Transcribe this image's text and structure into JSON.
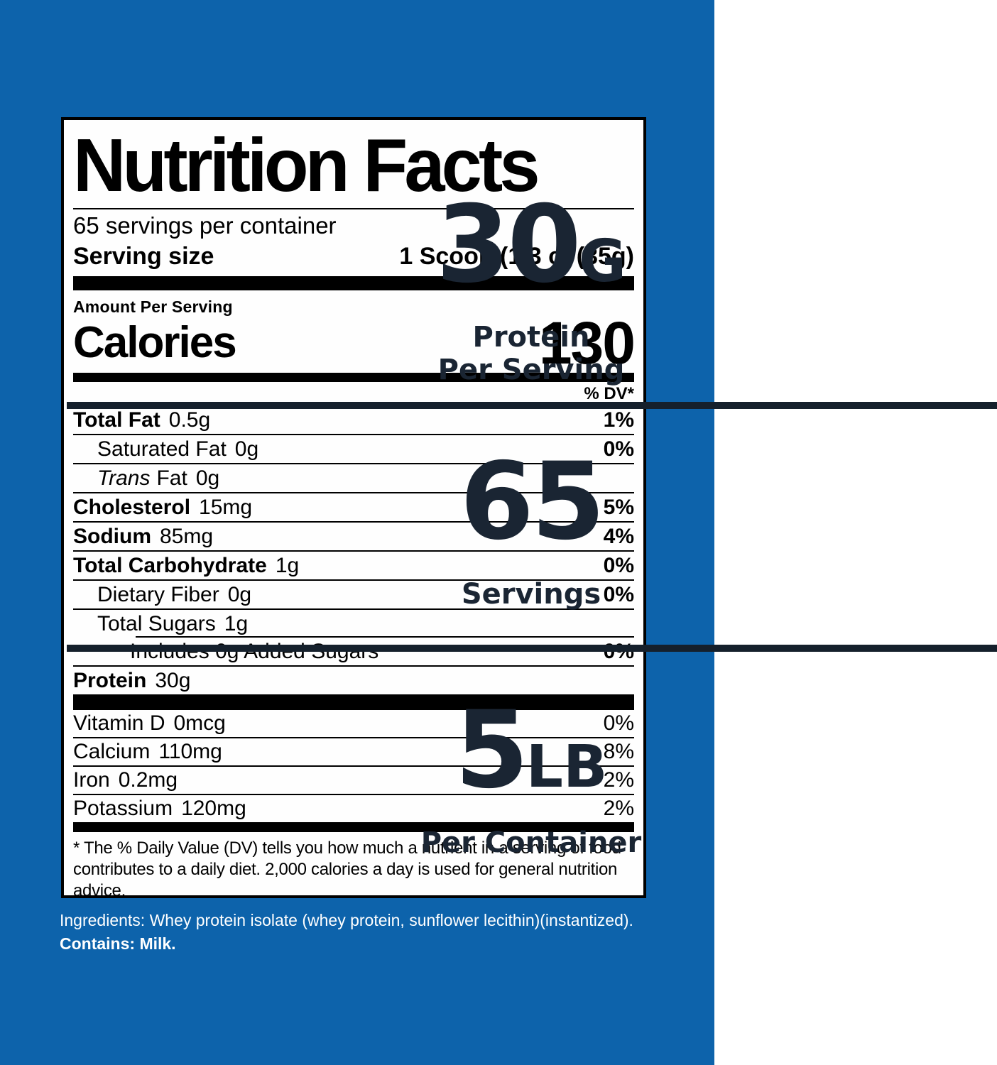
{
  "colors": {
    "background_blue": "#0d63ab",
    "stat_navy": "#1a2533",
    "label_black": "#000000",
    "label_white": "#fefefe"
  },
  "nutrition_label": {
    "title": "Nutrition Facts",
    "servings_per_container": "65 servings per container",
    "serving_size_label": "Serving size",
    "serving_size_value": "1 Scoop (1/3 c) (35g)",
    "amount_per_serving": "Amount Per Serving",
    "calories_label": "Calories",
    "calories_value": "130",
    "dv_header": "% DV*",
    "rows": [
      {
        "name": "Total Fat",
        "amount": "0.5g",
        "dv": "1%"
      },
      {
        "name": "Saturated Fat",
        "amount": "0g",
        "dv": "0%"
      },
      {
        "prefix_italic": "Trans",
        "name": "Fat",
        "amount": "0g",
        "dv": ""
      },
      {
        "name": "Cholesterol",
        "amount": "15mg",
        "dv": "5%"
      },
      {
        "name": "Sodium",
        "amount": "85mg",
        "dv": "4%"
      },
      {
        "name": "Total Carbohydrate",
        "amount": "1g",
        "dv": "0%"
      },
      {
        "name": "Dietary Fiber",
        "amount": "0g",
        "dv": "0%"
      },
      {
        "name": "Total Sugars",
        "amount": "1g",
        "dv": ""
      },
      {
        "name": "Includes 0g Added Sugars",
        "amount": "",
        "dv": "0%"
      },
      {
        "name": "Protein",
        "amount": "30g",
        "dv": ""
      }
    ],
    "vitamins": [
      {
        "name": "Vitamin D",
        "amount": "0mcg",
        "dv": "0%"
      },
      {
        "name": "Calcium",
        "amount": "110mg",
        "dv": "8%"
      },
      {
        "name": "Iron",
        "amount": "0.2mg",
        "dv": "2%"
      },
      {
        "name": "Potassium",
        "amount": "120mg",
        "dv": "2%"
      }
    ],
    "footnote": "* The % Daily Value (DV) tells you how much a nutrient in a serving of food contributes to a daily diet. 2,000 calories a day is used for general nutrition advice."
  },
  "ingredients": {
    "line1": "Ingredients: Whey protein isolate (whey protein, sunflower lecithin)(instantized).",
    "line2": "Contains: Milk."
  },
  "right_panel": {
    "stats": [
      {
        "value": "30",
        "unit": "G",
        "caption_line1": "Protein",
        "caption_line2": "Per Serving"
      },
      {
        "value": "65",
        "unit": "",
        "caption_line1": "Servings",
        "caption_line2": ""
      },
      {
        "value": "5",
        "unit": "LB",
        "caption_line1": "Per Container",
        "caption_line2": ""
      }
    ]
  }
}
